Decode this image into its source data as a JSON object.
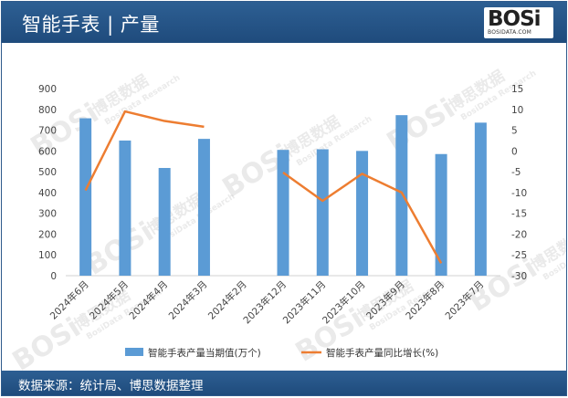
{
  "header": {
    "title": "智能手表 | 产量"
  },
  "logo": {
    "main": "BOSi",
    "sub": "BOSIDATA.COM"
  },
  "footer": {
    "source": "数据来源：统计局、博思数据整理"
  },
  "watermark": {
    "brand": "BOSi",
    "text": "博思数据",
    "sub": "BosiData Research"
  },
  "colors": {
    "bar": "#5b9bd5",
    "line": "#ed7d31",
    "header": "#1f4b7c"
  },
  "chart_data": {
    "type": "bar+line",
    "categories": [
      "2024年6月",
      "2024年5月",
      "2024年4月",
      "2024年3月",
      "2024年2月",
      "2023年12月",
      "2023年11月",
      "2023年10月",
      "2023年9月",
      "2023年8月",
      "2023年7月"
    ],
    "series": [
      {
        "name": "智能手表产量当期值(万个)",
        "type": "bar",
        "axis": "left",
        "values": [
          757,
          650,
          518,
          658,
          null,
          605,
          608,
          600,
          772,
          585,
          736
        ]
      },
      {
        "name": "智能手表产量同比增长(%)",
        "type": "line",
        "axis": "right",
        "values": [
          -9.5,
          9.5,
          7.2,
          5.8,
          null,
          -5.2,
          -12,
          -5.5,
          -10,
          -27,
          null
        ]
      }
    ],
    "left_axis": {
      "min": 0,
      "max": 900,
      "step": 100,
      "ticks": [
        "0",
        "100",
        "200",
        "300",
        "400",
        "500",
        "600",
        "700",
        "800",
        "900"
      ]
    },
    "right_axis": {
      "min": -30,
      "max": 15,
      "step": 5,
      "ticks": [
        "-30",
        "-25",
        "-20",
        "-15",
        "-10",
        "-5",
        "0",
        "5",
        "10",
        "15"
      ]
    },
    "grid": false,
    "legend_position": "bottom"
  }
}
